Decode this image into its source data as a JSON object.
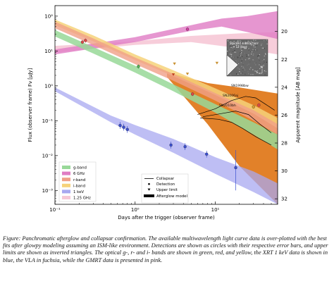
{
  "caption": "Figure: Panchromatic afterglow and collapsar confirmation. The available multiwavelength light curve data is over-plotted with the best fits after glowpy modeling assuming an ISM-like environment. Detections are shown as circles with their respective error bars, and upper limits are shown as inverted triangles. The optical g-, r- and i- bands are shown in green, red, and yellow, the XRT 1 keV data is shown in blue, the VLA in fuchsia, while the GMRT data is presented in pink.",
  "chart_data": {
    "type": "scatter",
    "xlabel": "Days after the trigger (observer frame)",
    "ylabel": "Flux (observer frame) Fν [µJy]",
    "y2label": "Apparent magnitude [AB mag]",
    "xscale": "log",
    "yscale": "log",
    "xlim": [
      0.1,
      60
    ],
    "ylim": [
      0.0004,
      200
    ],
    "x_ticks": [
      {
        "v": 0.1,
        "label": "10⁻¹"
      },
      {
        "v": 1,
        "label": "10⁰"
      },
      {
        "v": 10,
        "label": "10¹"
      }
    ],
    "y_ticks": [
      {
        "v": 0.001,
        "label": "10⁻³"
      },
      {
        "v": 0.01,
        "label": "10⁻²"
      },
      {
        "v": 0.1,
        "label": "10⁻¹"
      },
      {
        "v": 1,
        "label": "10⁰"
      },
      {
        "v": 10,
        "label": "10¹"
      },
      {
        "v": 100,
        "label": "10²"
      }
    ],
    "mag_ticks": [
      20,
      22,
      24,
      26,
      28,
      30,
      32
    ],
    "colors": {
      "g": "#55b055",
      "r": "#e04848",
      "i": "#d8a030",
      "xrt": "#3a4fd0",
      "vla": "#d23ca0",
      "gmrt": "#eab4c4",
      "orange_band": "#e07a1e",
      "g_band": "#98d898",
      "vla_band": "#e07cc4",
      "r_band": "#f0a088",
      "i_band": "#f6d27a",
      "xrt_band": "#a8a8f0",
      "gmrt_band": "#f6c8d6"
    },
    "legend_left": [
      "g-band",
      "6 GHz",
      "r-band",
      "i-band",
      "1 keV",
      "1.25 GHz"
    ],
    "legend_right": [
      "Collapsar",
      "Detection",
      "Upper limit",
      "Afterglow model"
    ],
    "collapsar_labels": [
      "SN1998bw",
      "SN2006aj",
      "SN2010bh"
    ],
    "inset_label": "Stacked subtraction\n~ 12 days",
    "inset_n": "N",
    "inset_e": "E",
    "detections": {
      "g": [
        {
          "x": 1.1,
          "y": 3.6
        }
      ],
      "r": [
        {
          "x": 0.22,
          "y": 18
        },
        {
          "x": 0.24,
          "y": 20
        },
        {
          "x": 5.2,
          "y": 0.58
        },
        {
          "x": 35,
          "y": 0.28
        }
      ],
      "i": [
        {
          "x": 30,
          "y": 0.25
        }
      ],
      "vla": [
        {
          "x": 4.5,
          "y": 42
        }
      ],
      "xrt": [
        {
          "x": 0.65,
          "y": 0.073
        },
        {
          "x": 0.72,
          "y": 0.065
        },
        {
          "x": 0.8,
          "y": 0.056
        },
        {
          "x": 2.8,
          "y": 0.02
        },
        {
          "x": 4.2,
          "y": 0.018
        },
        {
          "x": 7.8,
          "y": 0.011
        },
        {
          "x": 18,
          "y": 0.0045
        }
      ]
    },
    "upper_limits": {
      "i": [
        {
          "x": 3.1,
          "y": 4.3
        },
        {
          "x": 4.5,
          "y": 2.2
        },
        {
          "x": 10.5,
          "y": 4.5
        },
        {
          "x": 16,
          "y": 4.6
        }
      ],
      "r": [
        {
          "x": 3.0,
          "y": 2.1
        }
      ]
    }
  }
}
